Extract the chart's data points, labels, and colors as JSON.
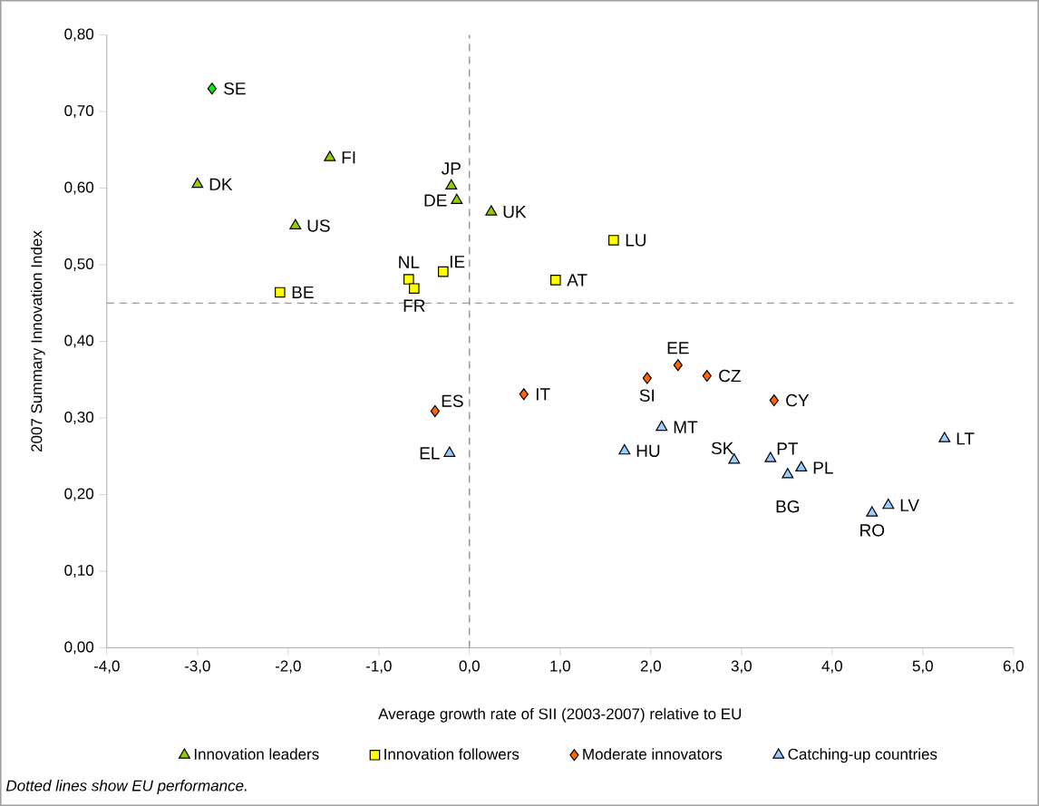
{
  "chart_data": {
    "type": "scatter",
    "xlabel": "Average growth rate of SII (2003-2007) relative to EU",
    "ylabel": "2007 Summary Innovation Index",
    "series": [
      {
        "name": "Innovation leaders",
        "color": "#99cc00",
        "marker": "triangle",
        "x": [
          -3.0,
          -1.54,
          -1.92,
          -0.2,
          -0.14,
          0.24
        ],
        "values": [
          0.605,
          0.64,
          0.551,
          0.603,
          0.584,
          0.569
        ]
      },
      {
        "name": "Innovation followers",
        "color": "#ffff00",
        "marker": "square",
        "x": [
          -2.09,
          -0.67,
          -0.29,
          -0.61,
          1.59,
          0.95
        ],
        "values": [
          0.464,
          0.481,
          0.491,
          0.469,
          0.532,
          0.48
        ]
      },
      {
        "name": "Moderate innovators",
        "color": "#ff6600",
        "marker": "diamond",
        "x": [
          -0.38,
          0.6,
          1.96,
          2.3,
          2.62,
          3.36
        ],
        "values": [
          0.309,
          0.331,
          0.352,
          0.369,
          0.355,
          0.323
        ]
      },
      {
        "name": "Catching-up countries",
        "color": "#99ccff",
        "marker": "triangle",
        "x": [
          -0.22,
          1.71,
          2.12,
          2.92,
          3.32,
          3.51,
          3.66,
          4.44,
          4.62,
          5.24
        ],
        "values": [
          0.254,
          0.257,
          0.288,
          0.245,
          0.247,
          0.226,
          0.235,
          0.176,
          0.186,
          0.273
        ]
      },
      {
        "color": "#00ee00",
        "marker": "diamond",
        "x": [
          -2.84
        ],
        "values": [
          0.73
        ]
      }
    ],
    "xlim": [
      -4,
      6
    ],
    "ylim": [
      0,
      0.8
    ],
    "xticks": [
      {
        "value": -4,
        "label": "-4,0"
      },
      {
        "value": -3,
        "label": "-3,0"
      },
      {
        "value": -2,
        "label": "-2,0"
      },
      {
        "value": -1,
        "label": "-1,0"
      },
      {
        "value": 0,
        "label": "0,0"
      },
      {
        "value": 1,
        "label": "1,0"
      },
      {
        "value": 2,
        "label": "2,0"
      },
      {
        "value": 3,
        "label": "3,0"
      },
      {
        "value": 4,
        "label": "4,0"
      },
      {
        "value": 5,
        "label": "5,0"
      },
      {
        "value": 6,
        "label": "6,0"
      }
    ],
    "yticks": [
      {
        "value": 0,
        "label": "0,00"
      },
      {
        "value": 0.1,
        "label": "0,10"
      },
      {
        "value": 0.2,
        "label": "0,20"
      },
      {
        "value": 0.3,
        "label": "0,30"
      },
      {
        "value": 0.4,
        "label": "0,40"
      },
      {
        "value": 0.5,
        "label": "0,50"
      },
      {
        "value": 0.6,
        "label": "0,60"
      },
      {
        "value": 0.7,
        "label": "0,70"
      },
      {
        "value": 0.8,
        "label": "0,80"
      }
    ],
    "ref_lines": [
      {
        "axis": "x",
        "value": 0,
        "color": "#808080",
        "line_style": "dashed"
      },
      {
        "axis": "y",
        "value": 0.45,
        "color": "#808080",
        "line_style": "dashed"
      }
    ],
    "legend": "bottom",
    "grid": false,
    "annotations": [
      {
        "text": "SE",
        "x": -2.84,
        "y": 0.73
      },
      {
        "text": "DK",
        "x": -3.0,
        "y": 0.605
      },
      {
        "text": "FI",
        "x": -1.54,
        "y": 0.64
      },
      {
        "text": "US",
        "x": -1.92,
        "y": 0.551
      },
      {
        "text": "JP",
        "x": -0.2,
        "y": 0.603
      },
      {
        "text": "DE",
        "x": -0.14,
        "y": 0.584
      },
      {
        "text": "UK",
        "x": 0.24,
        "y": 0.569
      },
      {
        "text": "BE",
        "x": -2.09,
        "y": 0.464
      },
      {
        "text": "NL",
        "x": -0.67,
        "y": 0.481
      },
      {
        "text": "IE",
        "x": -0.29,
        "y": 0.491
      },
      {
        "text": "FR",
        "x": -0.61,
        "y": 0.469
      },
      {
        "text": "LU",
        "x": 1.59,
        "y": 0.532
      },
      {
        "text": "AT",
        "x": 0.95,
        "y": 0.48
      },
      {
        "text": "ES",
        "x": -0.38,
        "y": 0.309
      },
      {
        "text": "IT",
        "x": 0.6,
        "y": 0.331
      },
      {
        "text": "SI",
        "x": 1.96,
        "y": 0.352
      },
      {
        "text": "EE",
        "x": 2.3,
        "y": 0.369
      },
      {
        "text": "CZ",
        "x": 2.62,
        "y": 0.355
      },
      {
        "text": "CY",
        "x": 3.36,
        "y": 0.323
      },
      {
        "text": "EL",
        "x": -0.22,
        "y": 0.254
      },
      {
        "text": "HU",
        "x": 1.71,
        "y": 0.257
      },
      {
        "text": "MT",
        "x": 2.12,
        "y": 0.288
      },
      {
        "text": "SK",
        "x": 2.92,
        "y": 0.245
      },
      {
        "text": "PT",
        "x": 3.32,
        "y": 0.247
      },
      {
        "text": "BG",
        "x": 3.51,
        "y": 0.226
      },
      {
        "text": "PL",
        "x": 3.66,
        "y": 0.235
      },
      {
        "text": "RO",
        "x": 4.44,
        "y": 0.176
      },
      {
        "text": "LV",
        "x": 4.62,
        "y": 0.186
      },
      {
        "text": "LT",
        "x": 5.24,
        "y": 0.273
      },
      "Dotted lines show EU performance."
    ]
  }
}
